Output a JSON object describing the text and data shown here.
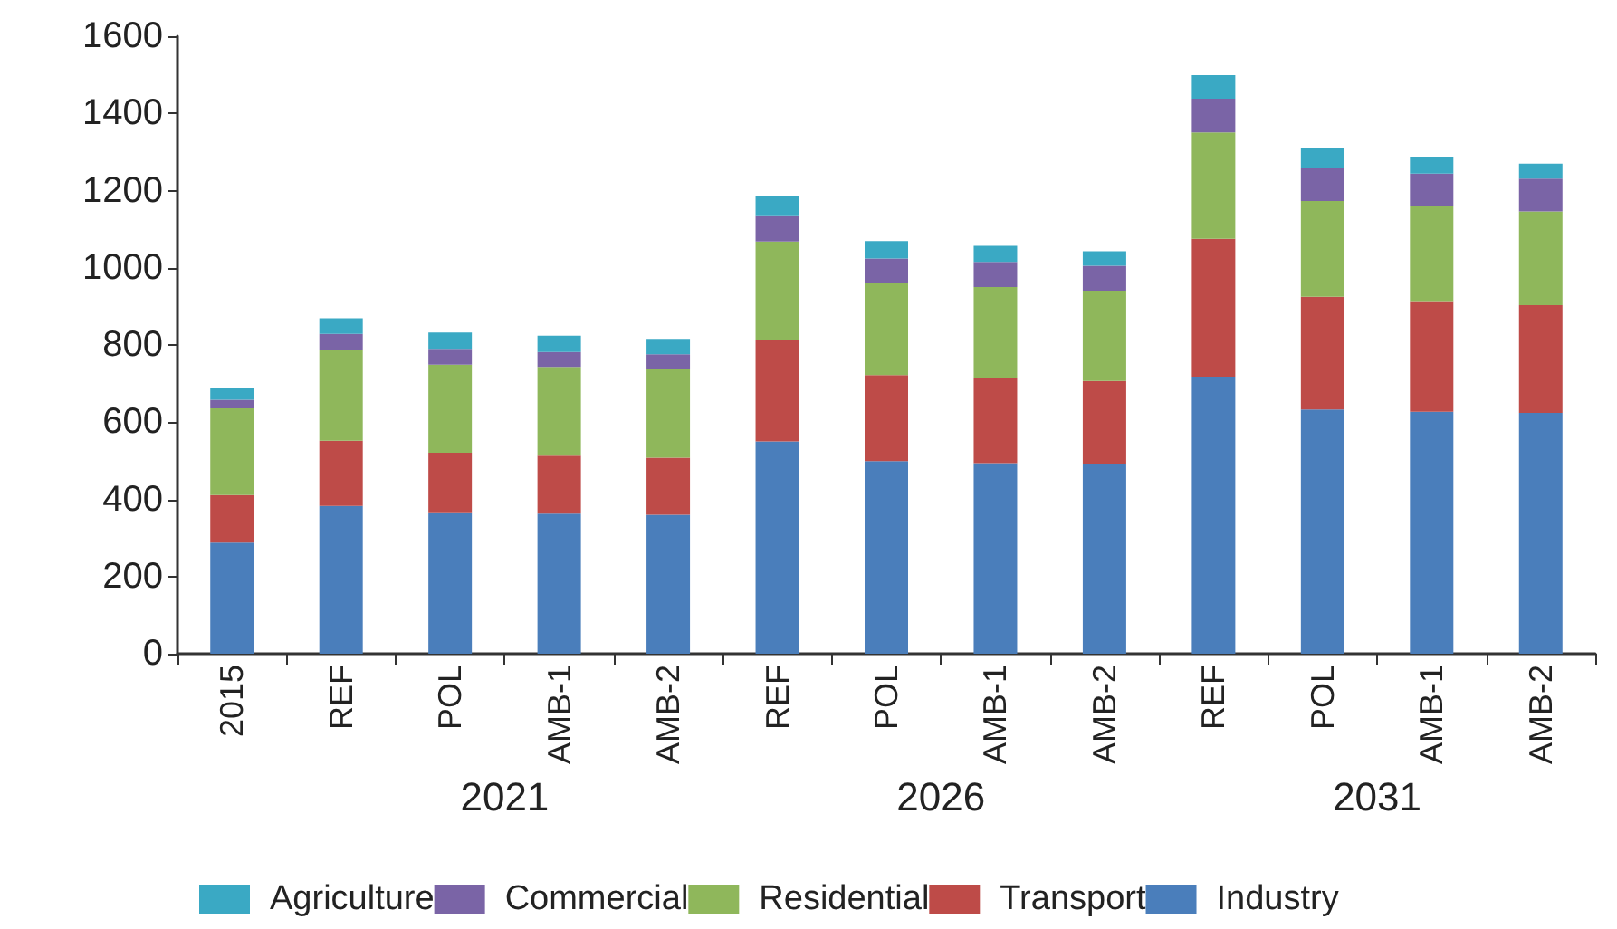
{
  "chart_data": {
    "type": "bar",
    "stacked": true,
    "categories": [
      "2015",
      "REF",
      "POL",
      "AMB-1",
      "AMB-2",
      "REF",
      "POL",
      "AMB-1",
      "AMB-2",
      "REF",
      "POL",
      "AMB-1",
      "AMB-2"
    ],
    "series": [
      {
        "name": "Industry",
        "color": "#4a7ebb",
        "values": [
          288,
          383,
          364,
          363,
          360,
          550,
          499,
          494,
          491,
          718,
          633,
          627,
          624
        ]
      },
      {
        "name": "Transport",
        "color": "#be4b48",
        "values": [
          123,
          169,
          157,
          150,
          148,
          263,
          223,
          219,
          216,
          357,
          292,
          287,
          279
        ]
      },
      {
        "name": "Residential",
        "color": "#8fb75b",
        "values": [
          225,
          234,
          228,
          230,
          230,
          255,
          239,
          237,
          234,
          276,
          248,
          246,
          243
        ]
      },
      {
        "name": "Commercial",
        "color": "#7a64a6",
        "values": [
          22,
          43,
          41,
          39,
          38,
          66,
          63,
          65,
          64,
          87,
          86,
          84,
          85
        ]
      },
      {
        "name": "Agriculture",
        "color": "#3aa9c4",
        "values": [
          31,
          40,
          42,
          42,
          40,
          51,
          45,
          42,
          38,
          61,
          50,
          44,
          39
        ]
      }
    ],
    "ylim": [
      0,
      1600
    ],
    "yticks": [
      0,
      200,
      400,
      600,
      800,
      1000,
      1200,
      1400,
      1600
    ],
    "grid": false,
    "legend": "bottom",
    "annotations": [
      "2021",
      "2026",
      "2031"
    ]
  }
}
